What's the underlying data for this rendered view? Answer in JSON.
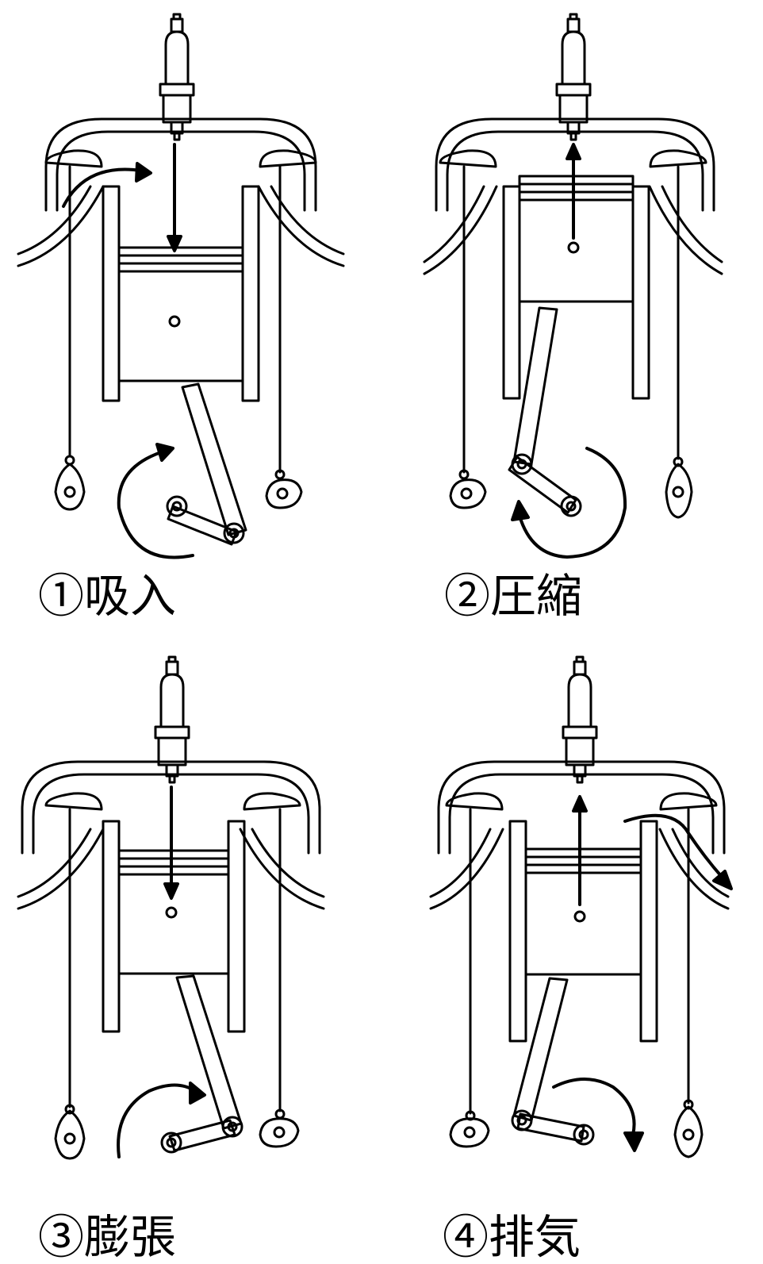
{
  "strokes": [
    {
      "number": "①",
      "name": "吸入"
    },
    {
      "number": "②",
      "name": "圧縮"
    },
    {
      "number": "③",
      "name": "膨張"
    },
    {
      "number": "④",
      "name": "排気"
    }
  ],
  "colors": {
    "line": "#000000",
    "fill": "#ffffff"
  }
}
